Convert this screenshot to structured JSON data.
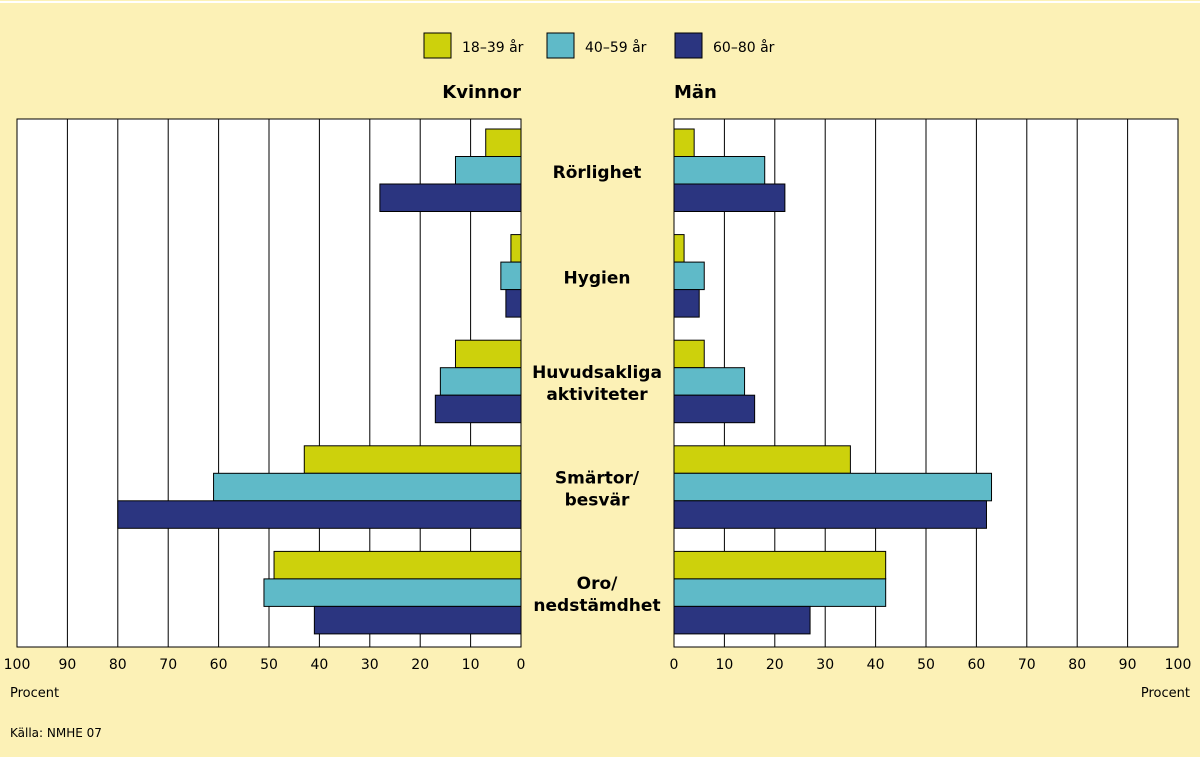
{
  "chart_data": {
    "type": "bar",
    "orientation": "horizontal",
    "layout": "butterfly",
    "categories": [
      "Rörlighet",
      "Hygien",
      "Huvudsakliga aktiviteter",
      "Smärtor/ besvär",
      "Oro/ nedstämdhet"
    ],
    "category_lines": [
      [
        "Rörlighet"
      ],
      [
        "Hygien"
      ],
      [
        "Huvudsakliga",
        "aktiviteter"
      ],
      [
        "Smärtor/",
        "besvär"
      ],
      [
        "Oro/",
        "nedstämdhet"
      ]
    ],
    "legend_position": "top-center",
    "xlim": [
      0,
      100
    ],
    "ticks": [
      0,
      10,
      20,
      30,
      40,
      50,
      60,
      70,
      80,
      90,
      100
    ],
    "xlabel": "Procent",
    "grid": true,
    "panels": [
      {
        "title": "Kvinnor",
        "direction": "reversed",
        "series": [
          {
            "name": "18–39 år",
            "color": "#cdd10c",
            "values": [
              7,
              2,
              13,
              43,
              49
            ]
          },
          {
            "name": "40–59 år",
            "color": "#5fbac8",
            "values": [
              13,
              4,
              16,
              61,
              51
            ]
          },
          {
            "name": "60–80 år",
            "color": "#2b3580",
            "values": [
              28,
              3,
              17,
              80,
              41
            ]
          }
        ]
      },
      {
        "title": "Män",
        "direction": "normal",
        "series": [
          {
            "name": "18–39 år",
            "color": "#cdd10c",
            "values": [
              4,
              2,
              6,
              35,
              42
            ]
          },
          {
            "name": "40–59 år",
            "color": "#5fbac8",
            "values": [
              18,
              6,
              14,
              63,
              42
            ]
          },
          {
            "name": "60–80 år",
            "color": "#2b3580",
            "values": [
              22,
              5,
              16,
              62,
              27
            ]
          }
        ]
      }
    ]
  },
  "source": "Källa: NMHE 07"
}
